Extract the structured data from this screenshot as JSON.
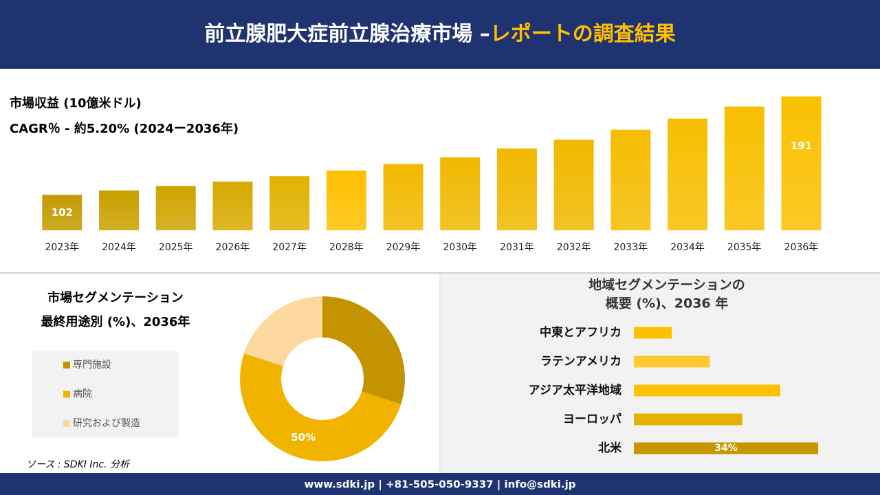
{
  "header": {
    "title": "前立腺肥大症前立腺治療市場 –",
    "highlight": "レポートの調査結果"
  },
  "chart_data": [
    {
      "type": "bar",
      "title": "市場収益 (10億米ドル)",
      "subtitle": "CAGR％ - 約5.20% (2024ー2036年)",
      "categories": [
        "2023年",
        "2024年",
        "2025年",
        "2026年",
        "2027年",
        "2028年",
        "2029年",
        "2030年",
        "2031年",
        "2032年",
        "2033年",
        "2034年",
        "2035年",
        "2036年"
      ],
      "values": [
        102,
        106,
        110,
        114,
        119,
        124,
        130,
        136,
        144,
        152,
        161,
        171,
        182,
        191
      ],
      "value_labels": [
        "102",
        null,
        null,
        null,
        null,
        null,
        null,
        null,
        null,
        null,
        null,
        null,
        null,
        "191"
      ],
      "colors": [
        "#c49a00",
        "#c9a000",
        "#cfa400",
        "#d6aa00",
        "#e0b200",
        "#ffc000",
        "#f2b900",
        "#f0b800",
        "#f0b800",
        "#f0b800",
        "#f5bc00",
        "#f7be00",
        "#f8bf00",
        "#fac000"
      ],
      "ylim": [
        70,
        195
      ]
    },
    {
      "type": "donut",
      "title": "市場セグメンテーション",
      "subtitle": "最終用途別 (%)、2036年",
      "categories": [
        "専門施設",
        "病院",
        "研究および製造"
      ],
      "values": [
        30,
        50,
        20
      ],
      "value_labels": [
        null,
        "50%",
        null
      ],
      "colors": [
        "#c49400",
        "#f0b400",
        "#fdd9a0"
      ]
    },
    {
      "type": "hbar",
      "title": "地域セグメンテーションの",
      "subtitle": "概要 (%)、2036 年",
      "categories": [
        "中東とアフリカ",
        "ラテンアメリカ",
        "アジア太平洋地域",
        "ヨーロッパ",
        "北米"
      ],
      "values": [
        7,
        14,
        27,
        20,
        34
      ],
      "value_labels": [
        null,
        null,
        null,
        null,
        "34%"
      ],
      "colors": [
        "#ffc000",
        "#ffc832",
        "#ffc000",
        "#e6b000",
        "#c89600"
      ],
      "xlim": [
        0,
        35
      ]
    }
  ],
  "source": "ソース : SDKI Inc. 分析",
  "footer": "www.sdki.jp | +81-505-050-9337 | info@sdki.jp"
}
